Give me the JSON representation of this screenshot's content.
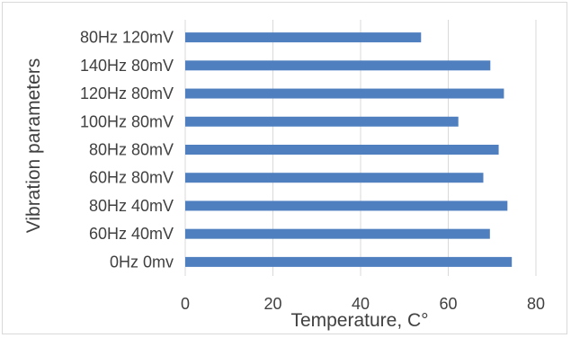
{
  "chart_data": {
    "type": "bar",
    "orientation": "horizontal",
    "categories": [
      "0Hz 0mv",
      "60Hz 40mV",
      "80Hz 40mV",
      "60Hz 80mV",
      "80Hz 80mV",
      "100Hz 80mV",
      "120Hz 80mV",
      "140Hz 80mV",
      "80Hz 120mV"
    ],
    "values": [
      74.5,
      69.5,
      73.5,
      68,
      71.5,
      62.3,
      72.7,
      69.6,
      53.8
    ],
    "title": "",
    "xlabel": "Temperature, C°",
    "ylabel": "Vibration parameters",
    "xlim": [
      0,
      80
    ],
    "xticks": [
      0,
      20,
      40,
      60,
      80
    ],
    "grid": "vertical",
    "legend": "none",
    "bar_color": "#4f7fbf",
    "grid_color": "#d9d9d9",
    "text_color": "#404040"
  }
}
